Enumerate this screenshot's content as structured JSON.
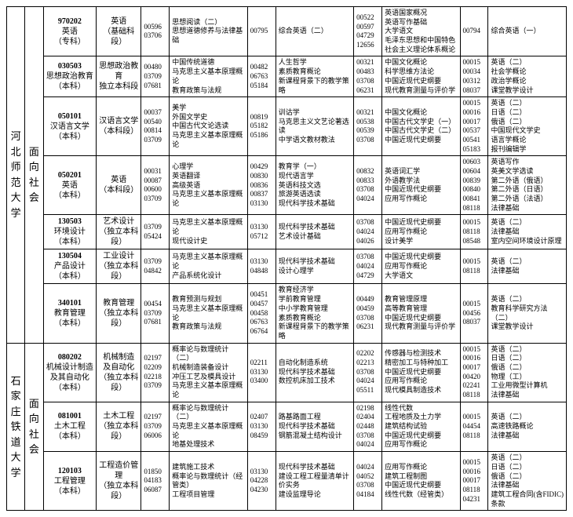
{
  "universities": [
    "河北师范大学",
    "石家庄铁道大学"
  ],
  "direction": "面向社会",
  "rows": [
    {
      "uni": 0,
      "major_code": "970202",
      "major_name": "英语",
      "major_note": "（专科）",
      "type": "英语\n（基础科段）",
      "g1c": [
        "00596",
        "03706"
      ],
      "g1n": [
        "思想阅读（二）",
        "思想道德修养与法律基础"
      ],
      "g2c": [
        "00795"
      ],
      "g2n": [
        "综合英语（二）"
      ],
      "g3c": [
        "00522",
        "00597",
        "04729",
        "12656"
      ],
      "g3n": [
        "英语国家概况",
        "英语写作基础",
        "大学语文",
        "毛泽东思想和中国特色社会主义理论体系概论"
      ],
      "g4c": [
        "00794"
      ],
      "g4n": [
        "综合英语（一）"
      ]
    },
    {
      "uni": 0,
      "major_code": "030503",
      "major_name": "思想政治教育",
      "major_note": "（本科）",
      "type": "思想政治教育\n独立本科段",
      "g1c": [
        "00480",
        "03709",
        "07681"
      ],
      "g1n": [
        "中国传统道德",
        "马克思主义基本原理概论",
        "教育政策与法规"
      ],
      "g2c": [
        "00482",
        "06763",
        "05184"
      ],
      "g2n": [
        "人生哲学",
        "素质教育概论",
        "新课程背景下的教学策略"
      ],
      "g3c": [
        "00321",
        "00483",
        "03708",
        "06231"
      ],
      "g3n": [
        "中国文化概论",
        "科学思维方法论",
        "中国近现代史纲要",
        "现代教育测量与评价学"
      ],
      "g4c": [
        "00015",
        "00034",
        "00312",
        "08037"
      ],
      "g4n": [
        "英语（二）",
        "社会学概论",
        "政治学概论",
        "课堂教学设计"
      ]
    },
    {
      "uni": 0,
      "major_code": "050101",
      "major_name": "汉语言文学",
      "major_note": "（本科）",
      "type": "汉语言文学\n（本科段）",
      "g1c": [
        "00037",
        "00540",
        "00814",
        "03709"
      ],
      "g1n": [
        "美学",
        "外国文学史",
        "中国古代文论选读",
        "马克思主义基本原理概论"
      ],
      "g2c": [
        "00819",
        "05182",
        "05186"
      ],
      "g2n": [
        "训诂学",
        "马克思主义文艺论著选读",
        "中学语文教材教法"
      ],
      "g3c": [
        "00321",
        "00538",
        "00539",
        "03708"
      ],
      "g3n": [
        "中国文化概论",
        "中国古代文学史（一）",
        "中国古代文学史（二）",
        "中国近现代史纲要"
      ],
      "g4c": [
        "00015",
        "00016",
        "00017",
        "00537",
        "00541",
        "05183"
      ],
      "g4n": [
        "英语（二）",
        "日语（二）",
        "俄语（二）",
        "中国现代文学史",
        "语言学概论",
        "报刊编辑学"
      ]
    },
    {
      "uni": 0,
      "major_code": "050201",
      "major_name": "英语",
      "major_note": "（本科）",
      "type": "英语\n（本科段）",
      "g1c": [
        "00031",
        "00087",
        "00600",
        "03709"
      ],
      "g1n": [
        "心理学",
        "英语翻译",
        "高级英语",
        "马克思主义基本原理概论"
      ],
      "g2c": [
        "00429",
        "00830",
        "00836",
        "00837",
        "03130"
      ],
      "g2n": [
        "教育学（一）",
        "现代语言学",
        "英语科技文选",
        "旅游英语选读",
        "现代科学技术基础"
      ],
      "g3c": [
        "00832",
        "00833",
        "03708",
        "04024"
      ],
      "g3n": [
        "英语词汇学",
        "外语教学法",
        "中国近现代史纲要",
        "应用写作概论"
      ],
      "g4c": [
        "00603",
        "00604",
        "00839",
        "00840",
        "00841",
        "08118"
      ],
      "g4n": [
        "英语写作",
        "英美文学选读",
        "第二外语（俄语）",
        "第二外语（日语）",
        "第二外语（法语）",
        "法律基础"
      ]
    },
    {
      "uni": 0,
      "major_code": "130503",
      "major_name": "环境设计",
      "major_note": "（本科）",
      "type": "艺术设计\n（独立本科段）",
      "g1c": [
        "03709",
        "05424"
      ],
      "g1n": [
        "马克思主义基本原理概论",
        "现代设计史"
      ],
      "g2c": [
        "03130",
        "05712"
      ],
      "g2n": [
        "现代科学技术基础",
        "艺术设计基础"
      ],
      "g3c": [
        "03708",
        "04024",
        "04026"
      ],
      "g3n": [
        "中国近现代史纲要",
        "应用写作概论",
        "设计美学"
      ],
      "g4c": [
        "00015",
        "08118",
        "08548"
      ],
      "g4n": [
        "英语（二）",
        "法律基础",
        "室内空间环境设计原理"
      ]
    },
    {
      "uni": 0,
      "major_code": "130504",
      "major_name": "产品设计",
      "major_note": "（本科）",
      "type": "工业设计\n（独立本科段）",
      "g1c": [
        "03709",
        "04842"
      ],
      "g1n": [
        "马克思主义基本原理概论",
        "产品系统化设计"
      ],
      "g2c": [
        "03130",
        "04848"
      ],
      "g2n": [
        "现代科学技术基础",
        "设计心理学"
      ],
      "g3c": [
        "03708",
        "04024",
        "04729"
      ],
      "g3n": [
        "中国近现代史纲要",
        "应用写作概论",
        "大学语文"
      ],
      "g4c": [
        "00015",
        "08118"
      ],
      "g4n": [
        "英语（二）",
        "法律基础"
      ]
    },
    {
      "uni": 0,
      "major_code": "340101",
      "major_name": "教育管理",
      "major_note": "（本科）",
      "type": "教育管理\n（独立本科段）",
      "g1c": [
        "00454",
        "03709",
        "07681"
      ],
      "g1n": [
        "教育预测与规划",
        "马克思主义基本原理概论",
        "教育政策与法规"
      ],
      "g2c": [
        "00451",
        "00457",
        "00458",
        "06763",
        "06764"
      ],
      "g2n": [
        "教育经济学",
        "学前教育管理",
        "中小学教育管理",
        "素质教育概论",
        "新课程背景下的教学策略"
      ],
      "g3c": [
        "00449",
        "00459",
        "03708",
        "06231"
      ],
      "g3n": [
        "教育管理原理",
        "高等教育管理",
        "中国近现代史纲要",
        "现代教育测量与评价学"
      ],
      "g4c": [
        "00015",
        "00456",
        "08037"
      ],
      "g4n": [
        "英语（二）",
        "教育科学研究方法（二）",
        "课堂教学设计"
      ]
    },
    {
      "uni": 1,
      "major_code": "080202",
      "major_name": "机械设计制造\n及其自动化",
      "major_note": "（本科）",
      "type": "机械制造\n及自动化\n（独立本科段）",
      "g1c": [
        "02197",
        "02209",
        "02218",
        "03709"
      ],
      "g1n": [
        "概率论与数理统计（二）",
        "机械制造装备设计",
        "冲压工艺及模具设计",
        "马克思主义基本原理概论"
      ],
      "g2c": [
        "02211",
        "03130",
        "03400"
      ],
      "g2n": [
        "自动化制造系统",
        "现代科学技术基础",
        "数控机床加工技术"
      ],
      "g3c": [
        "02202",
        "02213",
        "03708",
        "04024",
        "05511"
      ],
      "g3n": [
        "传感器与检测技术",
        "精密加工与特种加工",
        "中国近现代史纲要",
        "应用写作概论",
        "现代模具制造技术"
      ],
      "g4c": [
        "00015",
        "00016",
        "00017",
        "00420",
        "02241",
        "08118"
      ],
      "g4n": [
        "英语（二）",
        "日语（二）",
        "俄语（二）",
        "物理（工）",
        "工业用微型计算机",
        "法律基础"
      ]
    },
    {
      "uni": 1,
      "major_code": "081001",
      "major_name": "土木工程",
      "major_note": "（本科）",
      "type": "土木工程\n（独立本科段）",
      "g1c": [
        "02197",
        "03709",
        "06006"
      ],
      "g1n": [
        "概率论与数理统计（二）",
        "马克思主义基本原理概论",
        "地基处理技术"
      ],
      "g2c": [
        "02407",
        "03130",
        "08459"
      ],
      "g2n": [
        "路基路面工程",
        "现代科学技术基础",
        "钢筋混凝土结构设计"
      ],
      "g3c": [
        "02198",
        "02404",
        "02448",
        "03708",
        "04024"
      ],
      "g3n": [
        "线性代数",
        "工程地质及土力学",
        "建筑结构试验",
        "中国近现代史纲要",
        "应用写作概论"
      ],
      "g4c": [
        "00015",
        "04454",
        "08118"
      ],
      "g4n": [
        "英语（二）",
        "高速铁路概论",
        "法律基础"
      ]
    },
    {
      "uni": 1,
      "major_code": "120103",
      "major_name": "工程管理",
      "major_note": "（本科）",
      "type": "工程造价管理\n（独立本科段）",
      "g1c": [
        "01850",
        "04183",
        "06087"
      ],
      "g1n": [
        "建筑施工技术",
        "概率论与数理统计（经管类）",
        "工程项目管理"
      ],
      "g2c": [
        "03130",
        "04228",
        "04230"
      ],
      "g2n": [
        "现代科学技术基础",
        "建设工程工程量清单计价实务",
        "建设监理导论"
      ],
      "g3c": [
        "04024",
        "04052",
        "03708",
        "04184"
      ],
      "g3n": [
        "应用写作概论",
        "建筑工程制图",
        "中国近现代史纲要",
        "线性代数（经管类）"
      ],
      "g4c": [
        "00015",
        "00016",
        "00017",
        "08118",
        "04231"
      ],
      "g4n": [
        "英语（二）",
        "日语（二）",
        "俄语（二）",
        "法律基础",
        "建筑工程合同(含FIDIC)条款"
      ]
    }
  ],
  "style": {
    "font_family": "SimSun",
    "base_font_size": 10,
    "border_color": "#000000",
    "background": "#ffffff"
  }
}
